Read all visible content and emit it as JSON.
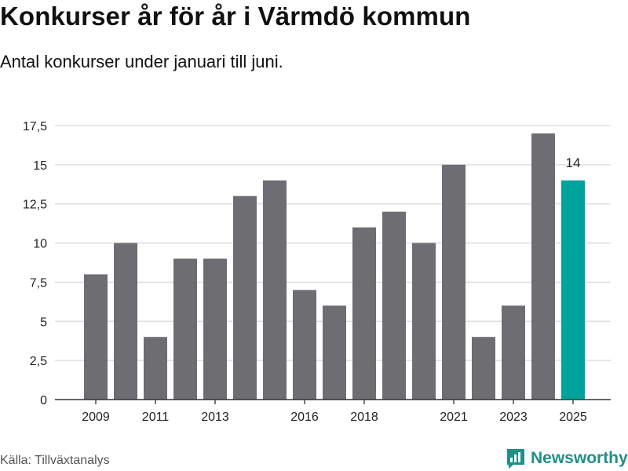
{
  "title": "Konkurser år för år i Värmdö kommun",
  "subtitle": "Antal konkurser under januari till juni.",
  "source": "Källa: Tillväxtanalys",
  "logo": {
    "text": "Newsworthy",
    "icon": "newsworthy-chart-icon",
    "color": "#1f8f89"
  },
  "colors": {
    "bar": "#6e6d72",
    "highlight": "#00a39b",
    "grid": "#d9d9d9",
    "axis": "#333333"
  },
  "chart_data": {
    "type": "bar",
    "title": "Konkurser år för år i Värmdö kommun",
    "subtitle": "Antal konkurser under januari till juni.",
    "xlabel": "",
    "ylabel": "",
    "ylim": [
      0,
      17.5
    ],
    "yticks": [
      0,
      2.5,
      5,
      7.5,
      10,
      12.5,
      15,
      17.5
    ],
    "ytick_labels": [
      "0",
      "2,5",
      "5",
      "7,5",
      "10",
      "12,5",
      "15",
      "17,5"
    ],
    "xtick_labels": [
      "2009",
      "2011",
      "2013",
      "2016",
      "2018",
      "2021",
      "2023",
      "2025"
    ],
    "categories": [
      "2009",
      "2010",
      "2011",
      "2012",
      "2013",
      "2014",
      "2015",
      "2016",
      "2017",
      "2018",
      "2019",
      "2020",
      "2021",
      "2022",
      "2023",
      "2024",
      "2025"
    ],
    "values": [
      8,
      10,
      4,
      9,
      9,
      13,
      14,
      7,
      6,
      11,
      12,
      10,
      15,
      4,
      6,
      17,
      14
    ],
    "highlight": "2025",
    "data_labels": [
      {
        "category": "2025",
        "text": "14"
      }
    ],
    "grid": true,
    "legend": "none"
  }
}
